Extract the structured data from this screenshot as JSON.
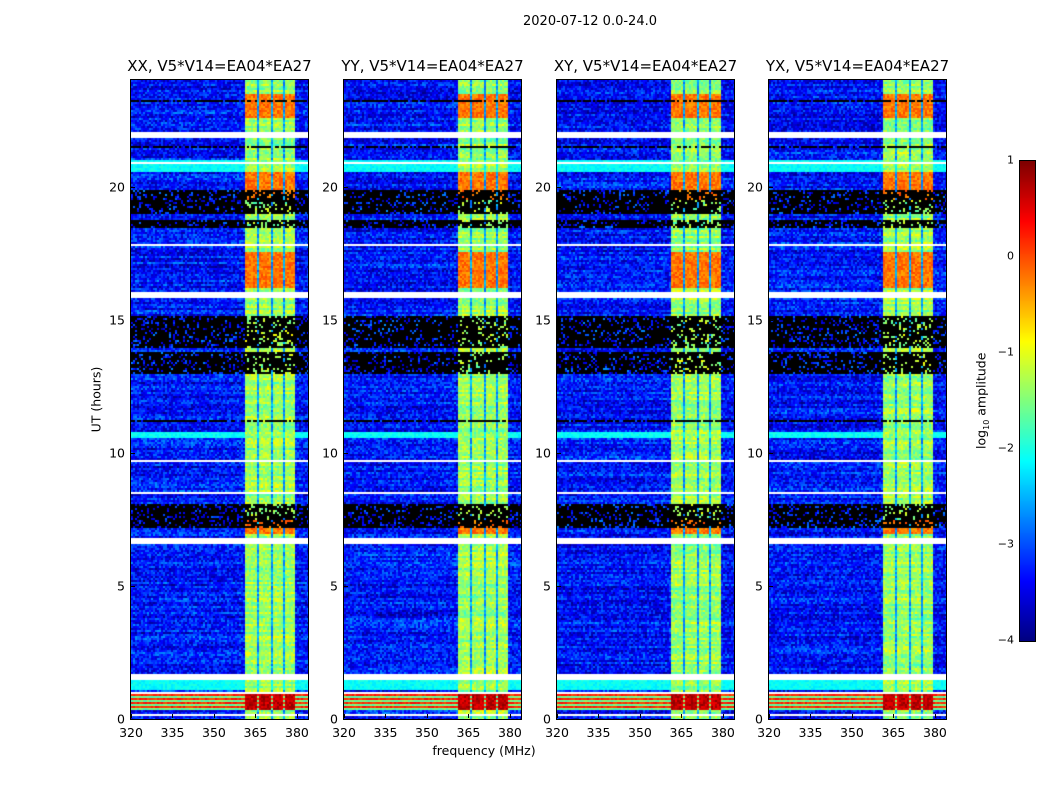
{
  "figure": {
    "title": "2020-07-12 0.0-24.0"
  },
  "chart_data": {
    "type": "heatmap",
    "xlabel": "frequency (MHz)",
    "ylabel": "UT (hours)",
    "xlim": [
      320,
      384
    ],
    "ylim": [
      0,
      24
    ],
    "xticks": [
      320,
      335,
      350,
      365,
      380
    ],
    "yticks": [
      0,
      5,
      10,
      15,
      20
    ],
    "panels": [
      {
        "title": "XX, V5*V14=EA04*EA27",
        "seed": 11
      },
      {
        "title": "YY, V5*V14=EA04*EA27",
        "seed": 23
      },
      {
        "title": "XY, V5*V14=EA04*EA27",
        "seed": 37
      },
      {
        "title": "YX, V5*V14=EA04*EA27",
        "seed": 53
      }
    ],
    "colorbar": {
      "label": "log10 amplitude",
      "label_main": "log",
      "label_sub": "10",
      "label_rest": " amplitude",
      "range": [
        -4,
        1
      ],
      "ticks": [
        "1",
        "0",
        "−1",
        "−2",
        "−3",
        "−4"
      ],
      "tick_values": [
        1,
        0,
        -1,
        -2,
        -3,
        -4
      ],
      "colormap": "jet"
    },
    "background_level": -3.3,
    "bright_subbands_mhz": [
      [
        361,
        365.3
      ],
      [
        366,
        370
      ],
      [
        370.7,
        374.6
      ],
      [
        375.3,
        379.2
      ]
    ],
    "flagged_hours_white": [
      [
        21.85,
        22.1
      ],
      [
        20.85,
        20.95
      ],
      [
        15.85,
        16.1
      ],
      [
        6.6,
        6.85
      ],
      [
        1.5,
        1.75
      ],
      [
        0.15,
        0.25
      ],
      [
        23.55,
        23.6
      ],
      [
        22.5,
        22.55
      ],
      [
        17.8,
        17.85
      ],
      [
        17.4,
        17.45
      ],
      [
        12.3,
        12.35
      ],
      [
        11.4,
        11.45
      ],
      [
        9.7,
        9.75
      ],
      [
        8.5,
        8.55
      ],
      [
        5.0,
        5.04
      ],
      [
        3.6,
        3.64
      ],
      [
        3.2,
        3.24
      ],
      [
        1.0,
        1.04
      ]
    ],
    "dropout_hours_black": [
      [
        23.2,
        23.25
      ],
      [
        21.5,
        21.55
      ],
      [
        19.0,
        19.9
      ],
      [
        18.5,
        18.8
      ],
      [
        14.0,
        15.2
      ],
      [
        13.0,
        13.8
      ],
      [
        11.2,
        11.3
      ],
      [
        9.3,
        9.35
      ],
      [
        7.2,
        8.1
      ],
      [
        4.85,
        4.9
      ],
      [
        2.9,
        2.95
      ]
    ],
    "strong_hours": [
      [
        0.4,
        1.05
      ],
      [
        7.0,
        7.5
      ],
      [
        16.2,
        17.6
      ],
      [
        19.5,
        20.6
      ],
      [
        22.6,
        23.5
      ]
    ],
    "bright_hours_wide": [
      [
        20.6,
        21.0
      ],
      [
        10.6,
        10.85
      ],
      [
        1.15,
        1.5
      ]
    ]
  }
}
